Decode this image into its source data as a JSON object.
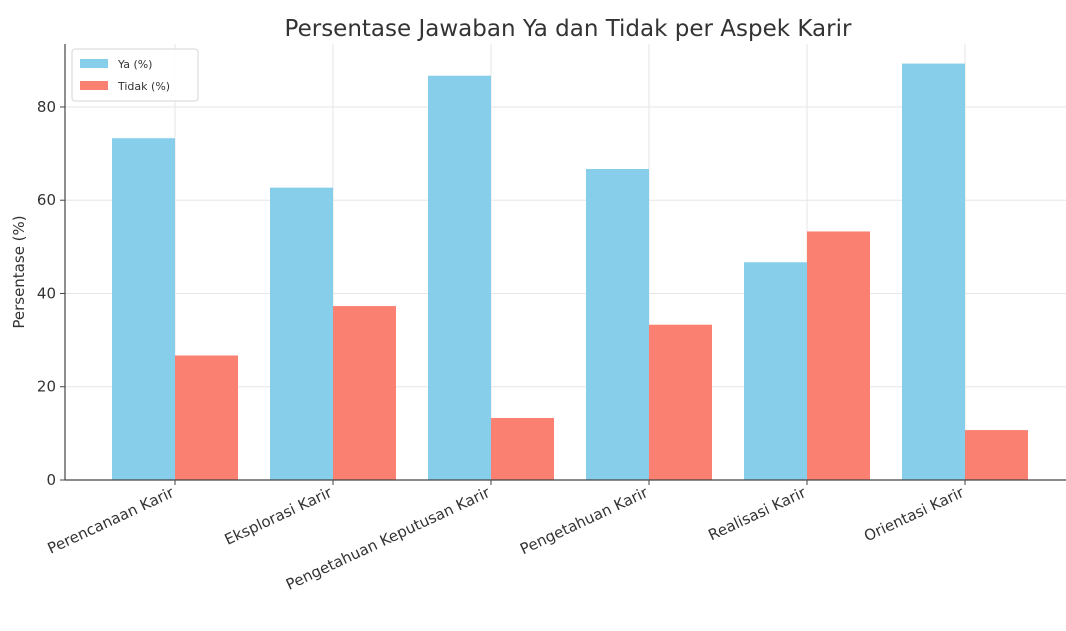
{
  "chart_data": {
    "type": "bar",
    "title": "Persentase Jawaban Ya dan Tidak per Aspek Karir",
    "xlabel": "",
    "ylabel": "Persentase (%)",
    "categories": [
      "Perencanaan Karir",
      "Eksplorasi Karir",
      "Pengetahuan Keputusan Karir",
      "Pengetahuan Karir",
      "Realisasi Karir",
      "Orientasi Karir"
    ],
    "series": [
      {
        "name": "Ya (%)",
        "color": "#87ceeb",
        "values": [
          73.3,
          62.7,
          86.7,
          66.7,
          46.7,
          89.3
        ]
      },
      {
        "name": "Tidak (%)",
        "color": "#fa8072",
        "values": [
          26.7,
          37.3,
          13.3,
          33.3,
          53.3,
          10.7
        ]
      }
    ],
    "ylim": [
      0,
      93.5
    ],
    "yticks": [
      0,
      20,
      40,
      60,
      80
    ],
    "grid": true,
    "legend_position": "top-left"
  }
}
